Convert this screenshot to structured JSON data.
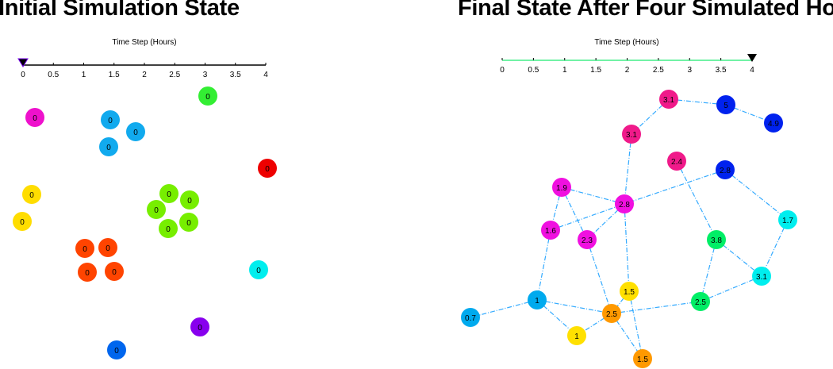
{
  "panels": [
    {
      "title": "Initial Simulation State",
      "timeline": {
        "label": "Time Step (Hours)",
        "ticks": [
          "0",
          "0.5",
          "1",
          "1.5",
          "2",
          "2.5",
          "3",
          "3.5",
          "4"
        ],
        "current_hours": 0,
        "line_color": "#000000"
      },
      "nodes": [
        {
          "label": "0",
          "color": "#ee11cc"
        },
        {
          "label": "0",
          "color": "#11aaee"
        },
        {
          "label": "0",
          "color": "#11aaee"
        },
        {
          "label": "0",
          "color": "#11aaee"
        },
        {
          "label": "0",
          "color": "#33ee33"
        },
        {
          "label": "0",
          "color": "#ee0000"
        },
        {
          "label": "0",
          "color": "#ffdd00"
        },
        {
          "label": "0",
          "color": "#ffdd00"
        },
        {
          "label": "0",
          "color": "#77ee00"
        },
        {
          "label": "0",
          "color": "#77ee00"
        },
        {
          "label": "0",
          "color": "#77ee00"
        },
        {
          "label": "0",
          "color": "#77ee00"
        },
        {
          "label": "0",
          "color": "#77ee00"
        },
        {
          "label": "0",
          "color": "#ff4400"
        },
        {
          "label": "0",
          "color": "#ff4400"
        },
        {
          "label": "0",
          "color": "#ff4400"
        },
        {
          "label": "0",
          "color": "#ff4400"
        },
        {
          "label": "0",
          "color": "#00eeee"
        },
        {
          "label": "0",
          "color": "#8800ee"
        },
        {
          "label": "0",
          "color": "#0066ee"
        }
      ],
      "edges": []
    },
    {
      "title": "Final State After Four Simulated Hours",
      "timeline": {
        "label": "Time Step (Hours)",
        "ticks": [
          "0",
          "0.5",
          "1",
          "1.5",
          "2",
          "2.5",
          "3",
          "3.5",
          "4"
        ],
        "current_hours": 4,
        "line_color": "#44ee88"
      },
      "nodes": [
        {
          "label": "3.1",
          "color": "#f01a8a"
        },
        {
          "label": "5",
          "color": "#0022ee"
        },
        {
          "label": "4.9",
          "color": "#0022ee"
        },
        {
          "label": "3.1",
          "color": "#f01a8a"
        },
        {
          "label": "2.4",
          "color": "#f01a8a"
        },
        {
          "label": "2.8",
          "color": "#0022ee"
        },
        {
          "label": "1.9",
          "color": "#f010e0"
        },
        {
          "label": "2.8",
          "color": "#f010e0"
        },
        {
          "label": "1.7",
          "color": "#00eeee"
        },
        {
          "label": "1.6",
          "color": "#f010e0"
        },
        {
          "label": "2.3",
          "color": "#f010e0"
        },
        {
          "label": "3.8",
          "color": "#00ee66"
        },
        {
          "label": "3.1",
          "color": "#00eeee"
        },
        {
          "label": "1.5",
          "color": "#ffe000"
        },
        {
          "label": "1",
          "color": "#00aaee"
        },
        {
          "label": "2.5",
          "color": "#00ee66"
        },
        {
          "label": "2.5",
          "color": "#ff9900"
        },
        {
          "label": "0.7",
          "color": "#00aaee"
        },
        {
          "label": "1",
          "color": "#ffe000"
        },
        {
          "label": "1.5",
          "color": "#ff9900"
        }
      ],
      "edges": [
        [
          0,
          1
        ],
        [
          1,
          2
        ],
        [
          0,
          3
        ],
        [
          3,
          7
        ],
        [
          7,
          13
        ],
        [
          4,
          11
        ],
        [
          5,
          7
        ],
        [
          5,
          8
        ],
        [
          6,
          7
        ],
        [
          6,
          9
        ],
        [
          6,
          10
        ],
        [
          9,
          7
        ],
        [
          7,
          10
        ],
        [
          8,
          12
        ],
        [
          11,
          12
        ],
        [
          11,
          15
        ],
        [
          12,
          15
        ],
        [
          9,
          14
        ],
        [
          14,
          17
        ],
        [
          14,
          16
        ],
        [
          14,
          18
        ],
        [
          10,
          16
        ],
        [
          13,
          16
        ],
        [
          13,
          19
        ],
        [
          16,
          15
        ],
        [
          16,
          18
        ],
        [
          16,
          19
        ]
      ],
      "edge_color": "#33aaff"
    }
  ]
}
